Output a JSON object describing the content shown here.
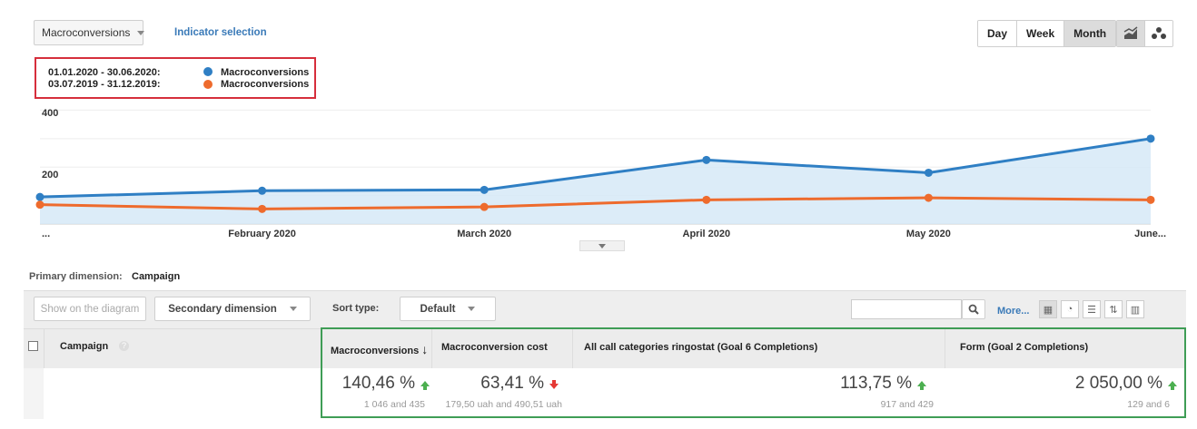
{
  "header": {
    "metric_dropdown": "Macroconversions",
    "indicator_link": "Indicator selection",
    "periods": [
      "Day",
      "Week",
      "Month"
    ],
    "active_period": "Month"
  },
  "legend": {
    "rows": [
      {
        "range": "01.01.2020 - 30.06.2020:",
        "label": "Macroconversions",
        "color": "#2f7fc4"
      },
      {
        "range": "03.07.2019 - 31.12.2019:",
        "label": "Macroconversions",
        "color": "#ee6b2d"
      }
    ]
  },
  "chart_data": {
    "type": "line",
    "x": [
      "...",
      "February 2020",
      "March 2020",
      "April 2020",
      "May 2020",
      "June..."
    ],
    "y_ticks": [
      "400",
      "200"
    ],
    "ylim": [
      0,
      430
    ],
    "series": [
      {
        "name": "Macroconversions",
        "values": [
          95,
          117,
          120,
          225,
          180,
          300
        ],
        "color": "#2f7fc4"
      },
      {
        "name": "Macroconversions",
        "values": [
          68,
          53,
          60,
          85,
          92,
          85
        ],
        "color": "#ee6b2d"
      }
    ]
  },
  "dimension": {
    "label": "Primary dimension:",
    "value": "Campaign"
  },
  "toolbar": {
    "show_diagram": "Show on the diagram",
    "secondary": "Secondary dimension",
    "sort_label": "Sort type:",
    "sort_value": "Default",
    "more": "More..."
  },
  "table": {
    "col_campaign": "Campaign",
    "columns": [
      {
        "header": "Macroconversions",
        "value": "140,46 %",
        "sub": "1 046 and 435",
        "trend": "up"
      },
      {
        "header": "Macroconversion cost",
        "value": "63,41 %",
        "sub": "179,50 uah and 490,51 uah",
        "trend": "down"
      },
      {
        "header": "All call categories ringostat (Goal 6 Completions)",
        "value": "113,75 %",
        "sub": "917 and 429",
        "trend": "up"
      },
      {
        "header": "Form (Goal 2 Completions)",
        "value": "2 050,00 %",
        "sub": "129 and 6",
        "trend": "up"
      }
    ]
  }
}
